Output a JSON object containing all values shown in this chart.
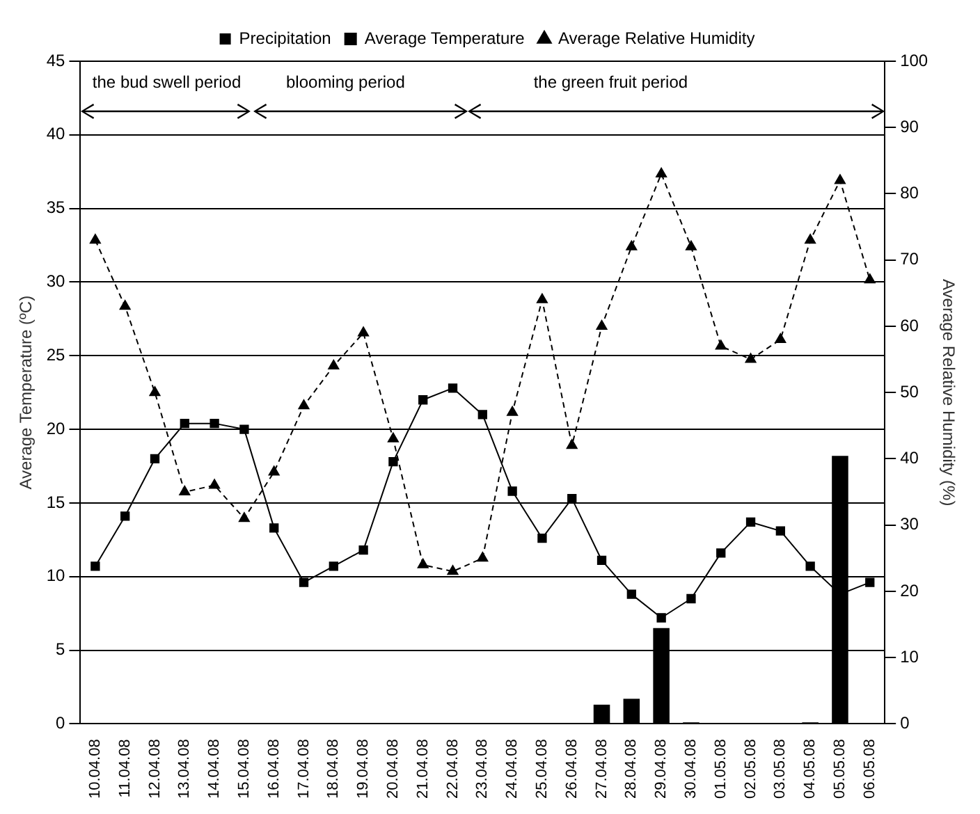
{
  "chart_data": {
    "type": "bar",
    "categories": [
      "10.04.08",
      "11.04.08",
      "12.04.08",
      "13.04.08",
      "14.04.08",
      "15.04.08",
      "16.04.08",
      "17.04.08",
      "18.04.08",
      "19.04.08",
      "20.04.08",
      "21.04.08",
      "22.04.08",
      "23.04.08",
      "24.04.08",
      "25.04.08",
      "26.04.08",
      "27.04.08",
      "28.04.08",
      "29.04.08",
      "30.04.08",
      "01.05.08",
      "02.05.08",
      "03.05.08",
      "04.05.08",
      "05.05.08",
      "06.05.08"
    ],
    "series": [
      {
        "name": "Precipitation",
        "color": "#000000",
        "values": [
          0,
          0,
          0,
          0,
          0,
          0,
          0,
          0,
          0,
          0,
          0,
          0,
          0,
          0,
          0,
          0,
          0,
          1.3,
          1.7,
          6.5,
          0.1,
          0,
          0,
          0,
          0.1,
          18.2,
          0
        ]
      },
      {
        "name": "Average Temperature",
        "type": "line",
        "color": "#000000",
        "marker": "square",
        "line_style": "solid",
        "values": [
          10.7,
          14.1,
          18.0,
          20.4,
          20.4,
          20.0,
          13.3,
          9.6,
          10.7,
          11.8,
          17.8,
          22.0,
          22.8,
          21.0,
          15.8,
          12.6,
          15.3,
          11.1,
          8.8,
          7.2,
          8.5,
          11.6,
          13.7,
          13.1,
          10.7,
          8.8,
          9.6
        ]
      },
      {
        "name": "Average Relative Humidity",
        "type": "line",
        "axis": "y2",
        "color": "#000000",
        "marker": "triangle",
        "line_style": "dashed",
        "values": [
          73,
          63,
          50,
          35,
          36,
          31,
          38,
          48,
          54,
          59,
          43,
          24,
          23,
          25,
          47,
          64,
          42,
          60,
          72,
          83,
          72,
          57,
          55,
          58,
          73,
          82,
          67
        ]
      }
    ],
    "ylabel": "Average Temperature (ºC)",
    "y2label": "Average Relative Humidity (%)",
    "ylim": [
      0,
      45
    ],
    "yticks": [
      0,
      5,
      10,
      15,
      20,
      25,
      30,
      35,
      40,
      45
    ],
    "y2lim": [
      0,
      100
    ],
    "y2ticks": [
      0,
      10,
      20,
      30,
      40,
      50,
      60,
      70,
      80,
      90,
      100
    ],
    "grid": "y",
    "legend": "top",
    "annotations": [
      "the bud swell period",
      "blooming period",
      "the green fruit period"
    ]
  }
}
